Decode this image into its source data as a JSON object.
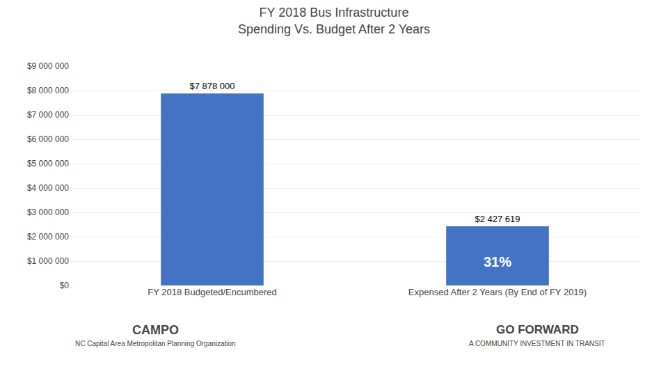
{
  "chart_data": {
    "type": "bar",
    "title": "FY 2018 Bus Infrastructure\nSpending Vs. Budget After 2 Years",
    "categories": [
      "FY 2018 Budgeted/Encumbered",
      "Expensed After 2 Years (By End of FY 2019)"
    ],
    "values": [
      7878000,
      2427619
    ],
    "value_labels": [
      "$7 878 000",
      "$2 427 619"
    ],
    "data_labels": true,
    "color": "#4472C4",
    "ylim": [
      0,
      9000000
    ],
    "yticks": [
      {
        "value": 0,
        "label": "$0"
      },
      {
        "value": 1000000,
        "label": "$1 000 000"
      },
      {
        "value": 2000000,
        "label": "$2 000 000"
      },
      {
        "value": 3000000,
        "label": "$3 000 000"
      },
      {
        "value": 4000000,
        "label": "$4 000 000"
      },
      {
        "value": 5000000,
        "label": "$5 000 000"
      },
      {
        "value": 6000000,
        "label": "$6 000 000"
      },
      {
        "value": 7000000,
        "label": "$7 000 000"
      },
      {
        "value": 8000000,
        "label": "$8 000 000"
      },
      {
        "value": 9000000,
        "label": "$9 000 000"
      }
    ],
    "grid": true,
    "annotations": [
      {
        "text": "31%",
        "category": "Expensed After 2 Years (By End of FY 2019)"
      },
      {
        "text": "CAMPO"
      },
      {
        "text": "NC Capital Area Metropolitan Planning Organization"
      },
      {
        "text": "GO FORWARD"
      },
      {
        "text": "A COMMUNITY INVESTMENT IN TRANSIT"
      }
    ]
  }
}
